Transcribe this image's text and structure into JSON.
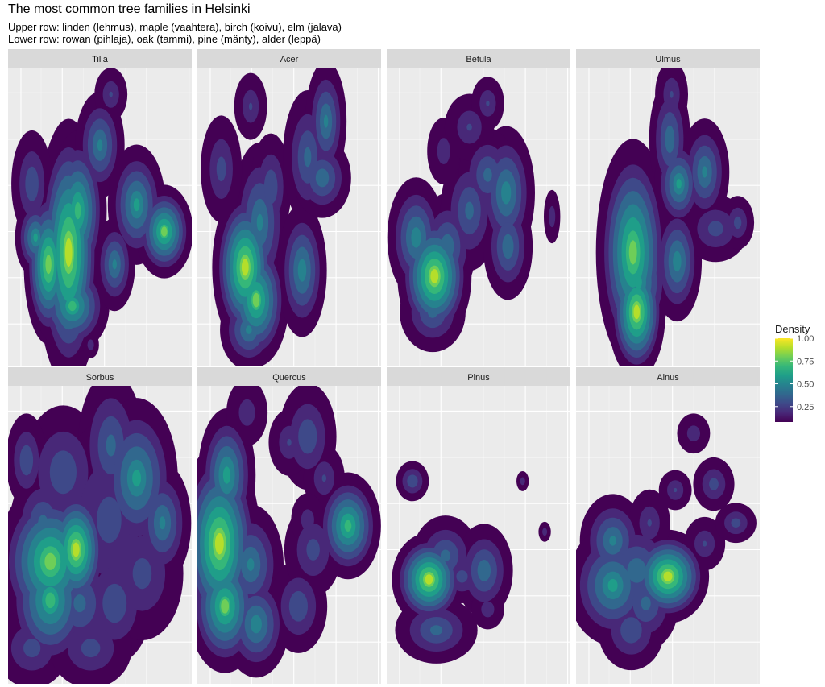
{
  "chart_data": {
    "type": "heatmap",
    "title": "The most common tree families in Helsinki",
    "subtitle_lines": [
      "Upper row: linden (lehmus), maple (vaahtera), birch (koivu), elm (jalava)",
      "Lower row: rowan (pihlaja), oak (tammi), pine (mänty), alder (leppä)"
    ],
    "facets": [
      "Tilia",
      "Acer",
      "Betula",
      "Ulmus",
      "Sorbus",
      "Quercus",
      "Pinus",
      "Alnus"
    ],
    "grid": true,
    "legend": {
      "title": "Density",
      "position": "right",
      "ticks": [
        0.25,
        0.5,
        0.75,
        1.0
      ],
      "tick_labels": [
        "0.25",
        "0.50",
        "0.75",
        "1.00"
      ],
      "range": [
        0.08,
        1.0
      ],
      "palette": "viridis"
    },
    "density_peaks_note_free": true
  },
  "colors": {
    "panel_bg": "#ebebeb",
    "strip_bg": "#d9d9d9",
    "grid_major": "#ffffff",
    "grid_minor": "#f5f5f5",
    "text": "#1a1a1a",
    "viridis": [
      "#440154",
      "#482878",
      "#3e4989",
      "#31688e",
      "#26828e",
      "#1f9e89",
      "#35b779",
      "#6ece58",
      "#b5de2b",
      "#fde725"
    ]
  }
}
